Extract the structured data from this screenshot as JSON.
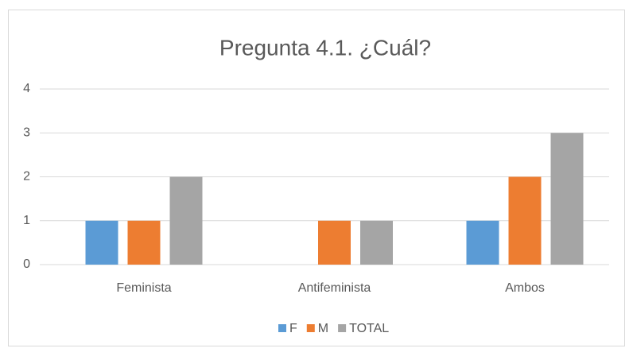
{
  "chart_data": {
    "type": "bar",
    "title": "Pregunta 4.1. ¿Cuál?",
    "categories": [
      "Feminista",
      "Antifeminista",
      "Ambos"
    ],
    "series": [
      {
        "name": "F",
        "color": "#5b9bd5",
        "values": [
          1,
          0,
          1
        ]
      },
      {
        "name": "M",
        "color": "#ed7d31",
        "values": [
          1,
          1,
          2
        ]
      },
      {
        "name": "TOTAL",
        "color": "#a5a5a5",
        "values": [
          2,
          1,
          3
        ]
      }
    ],
    "ylim": [
      0,
      4
    ],
    "yticks": [
      0,
      1,
      2,
      3,
      4
    ],
    "grid": true,
    "legend": "bottom"
  }
}
